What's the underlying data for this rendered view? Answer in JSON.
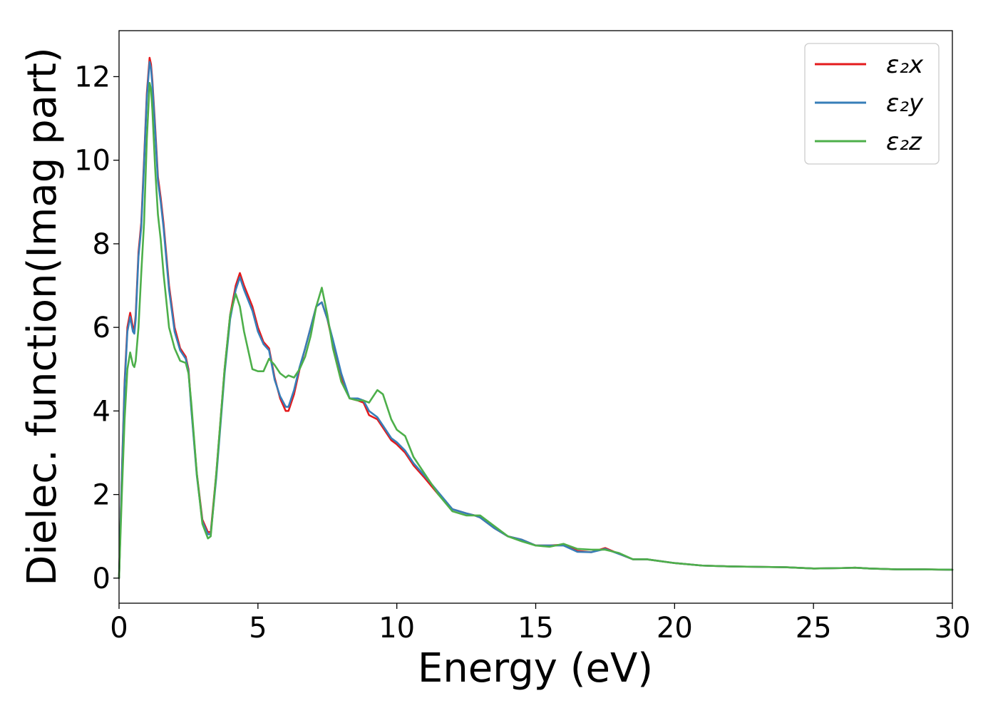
{
  "chart_data": {
    "type": "line",
    "title": "",
    "xlabel": "Energy (eV)",
    "ylabel": "Dielec. function(Imag part)",
    "xlim": [
      0,
      30
    ],
    "ylim": [
      -0.6,
      13.1
    ],
    "xticks": [
      0,
      5,
      10,
      15,
      20,
      25,
      30
    ],
    "yticks": [
      0,
      2,
      4,
      6,
      8,
      10,
      12
    ],
    "legend_position": "top-right",
    "grid": false,
    "series": [
      {
        "name": "ε₂x",
        "color": "#e41a1c",
        "x": [
          0,
          0.1,
          0.2,
          0.3,
          0.4,
          0.5,
          0.55,
          0.6,
          0.7,
          0.8,
          0.9,
          1.0,
          1.1,
          1.15,
          1.2,
          1.3,
          1.4,
          1.5,
          1.6,
          1.8,
          2.0,
          2.2,
          2.4,
          2.5,
          2.6,
          2.8,
          3.0,
          3.2,
          3.3,
          3.5,
          3.8,
          4.0,
          4.2,
          4.35,
          4.5,
          4.8,
          5.0,
          5.2,
          5.4,
          5.6,
          5.8,
          6.0,
          6.1,
          6.3,
          6.5,
          6.7,
          6.9,
          7.1,
          7.3,
          7.5,
          7.7,
          8.0,
          8.3,
          8.6,
          8.8,
          9.0,
          9.3,
          9.5,
          9.8,
          10.0,
          10.3,
          10.6,
          11.0,
          11.5,
          12.0,
          12.5,
          12.8,
          13.0,
          13.5,
          14.0,
          14.5,
          15.0,
          15.5,
          16.0,
          16.5,
          17.0,
          17.5,
          18.0,
          18.5,
          19.0,
          20.0,
          21.0,
          22.0,
          23.0,
          24.0,
          25.0,
          26.0,
          26.5,
          27.0,
          28.0,
          29.0,
          30.0
        ],
        "values": [
          0,
          2.5,
          4.7,
          6.0,
          6.35,
          6.0,
          5.95,
          6.3,
          7.8,
          8.5,
          10.0,
          11.6,
          12.45,
          12.3,
          11.9,
          10.8,
          9.6,
          9.1,
          8.5,
          7.0,
          6.0,
          5.5,
          5.3,
          5.0,
          4.1,
          2.5,
          1.4,
          1.1,
          1.1,
          2.5,
          5.0,
          6.3,
          7.0,
          7.3,
          7.0,
          6.5,
          6.0,
          5.65,
          5.5,
          4.8,
          4.3,
          4.0,
          4.0,
          4.4,
          5.0,
          5.5,
          6.0,
          6.5,
          6.6,
          6.2,
          5.6,
          4.8,
          4.3,
          4.25,
          4.2,
          3.9,
          3.8,
          3.6,
          3.3,
          3.2,
          3.0,
          2.7,
          2.4,
          2.0,
          1.65,
          1.55,
          1.5,
          1.45,
          1.2,
          1.0,
          0.92,
          0.78,
          0.78,
          0.8,
          0.65,
          0.62,
          0.72,
          0.58,
          0.45,
          0.45,
          0.36,
          0.3,
          0.28,
          0.27,
          0.26,
          0.23,
          0.24,
          0.25,
          0.23,
          0.21,
          0.21,
          0.2
        ]
      },
      {
        "name": "ε₂y",
        "color": "#377eb8",
        "x": [
          0,
          0.1,
          0.2,
          0.3,
          0.4,
          0.5,
          0.55,
          0.6,
          0.7,
          0.8,
          0.9,
          1.0,
          1.1,
          1.15,
          1.2,
          1.3,
          1.4,
          1.5,
          1.6,
          1.8,
          2.0,
          2.2,
          2.4,
          2.5,
          2.6,
          2.8,
          3.0,
          3.2,
          3.3,
          3.5,
          3.8,
          4.0,
          4.2,
          4.35,
          4.5,
          4.8,
          5.0,
          5.2,
          5.4,
          5.6,
          5.8,
          6.0,
          6.1,
          6.3,
          6.5,
          6.7,
          6.9,
          7.1,
          7.3,
          7.5,
          7.7,
          8.0,
          8.3,
          8.6,
          8.8,
          9.0,
          9.3,
          9.5,
          9.8,
          10.0,
          10.3,
          10.6,
          11.0,
          11.5,
          12.0,
          12.5,
          12.8,
          13.0,
          13.5,
          14.0,
          14.5,
          15.0,
          15.5,
          16.0,
          16.5,
          17.0,
          17.5,
          18.0,
          18.5,
          19.0,
          20.0,
          21.0,
          22.0,
          23.0,
          24.0,
          25.0,
          26.0,
          26.5,
          27.0,
          28.0,
          29.0,
          30.0
        ],
        "values": [
          0,
          2.4,
          4.6,
          5.9,
          6.25,
          5.9,
          5.85,
          6.2,
          7.7,
          8.4,
          9.9,
          11.5,
          12.35,
          12.2,
          11.8,
          10.7,
          9.5,
          9.0,
          8.4,
          6.9,
          5.9,
          5.45,
          5.25,
          4.95,
          4.05,
          2.45,
          1.35,
          1.05,
          1.05,
          2.4,
          4.9,
          6.2,
          6.9,
          7.2,
          6.9,
          6.4,
          5.9,
          5.6,
          5.45,
          4.75,
          4.35,
          4.1,
          4.1,
          4.5,
          5.05,
          5.5,
          6.0,
          6.5,
          6.6,
          6.2,
          5.7,
          4.9,
          4.3,
          4.3,
          4.25,
          4.0,
          3.85,
          3.65,
          3.35,
          3.25,
          3.05,
          2.75,
          2.45,
          2.05,
          1.65,
          1.55,
          1.5,
          1.45,
          1.2,
          1.0,
          0.92,
          0.78,
          0.78,
          0.78,
          0.63,
          0.62,
          0.7,
          0.58,
          0.45,
          0.45,
          0.36,
          0.3,
          0.28,
          0.27,
          0.26,
          0.23,
          0.24,
          0.25,
          0.23,
          0.21,
          0.21,
          0.2
        ]
      },
      {
        "name": "ε₂z",
        "color": "#4daf4a",
        "x": [
          0,
          0.1,
          0.2,
          0.3,
          0.4,
          0.5,
          0.55,
          0.6,
          0.7,
          0.8,
          0.9,
          1.0,
          1.1,
          1.15,
          1.2,
          1.3,
          1.4,
          1.5,
          1.6,
          1.8,
          2.0,
          2.2,
          2.4,
          2.5,
          2.6,
          2.8,
          3.0,
          3.2,
          3.3,
          3.5,
          3.8,
          4.0,
          4.2,
          4.35,
          4.5,
          4.8,
          5.0,
          5.2,
          5.4,
          5.6,
          5.8,
          6.0,
          6.1,
          6.3,
          6.5,
          6.7,
          6.9,
          7.1,
          7.3,
          7.5,
          7.7,
          8.0,
          8.3,
          8.6,
          8.8,
          9.0,
          9.3,
          9.5,
          9.8,
          10.0,
          10.3,
          10.6,
          11.0,
          11.5,
          12.0,
          12.5,
          12.8,
          13.0,
          13.5,
          14.0,
          14.5,
          15.0,
          15.5,
          16.0,
          16.5,
          17.0,
          17.5,
          18.0,
          18.5,
          19.0,
          20.0,
          21.0,
          22.0,
          23.0,
          24.0,
          25.0,
          26.0,
          26.5,
          27.0,
          28.0,
          29.0,
          30.0
        ],
        "values": [
          0,
          2.0,
          3.8,
          5.0,
          5.4,
          5.1,
          5.05,
          5.2,
          6.0,
          7.3,
          8.5,
          10.5,
          11.85,
          11.7,
          11.2,
          9.8,
          8.7,
          8.1,
          7.3,
          6.0,
          5.5,
          5.2,
          5.15,
          4.9,
          4.2,
          2.5,
          1.3,
          0.95,
          1.0,
          2.5,
          5.0,
          6.3,
          6.8,
          6.5,
          5.9,
          5.0,
          4.95,
          4.95,
          5.25,
          5.1,
          4.9,
          4.8,
          4.85,
          4.8,
          5.0,
          5.3,
          5.8,
          6.5,
          6.95,
          6.3,
          5.5,
          4.7,
          4.3,
          4.25,
          4.25,
          4.2,
          4.5,
          4.4,
          3.8,
          3.55,
          3.4,
          2.9,
          2.5,
          2.0,
          1.6,
          1.5,
          1.5,
          1.5,
          1.25,
          1.0,
          0.88,
          0.78,
          0.75,
          0.82,
          0.7,
          0.68,
          0.68,
          0.6,
          0.45,
          0.45,
          0.36,
          0.3,
          0.28,
          0.27,
          0.26,
          0.23,
          0.24,
          0.25,
          0.23,
          0.21,
          0.21,
          0.2
        ]
      }
    ]
  }
}
